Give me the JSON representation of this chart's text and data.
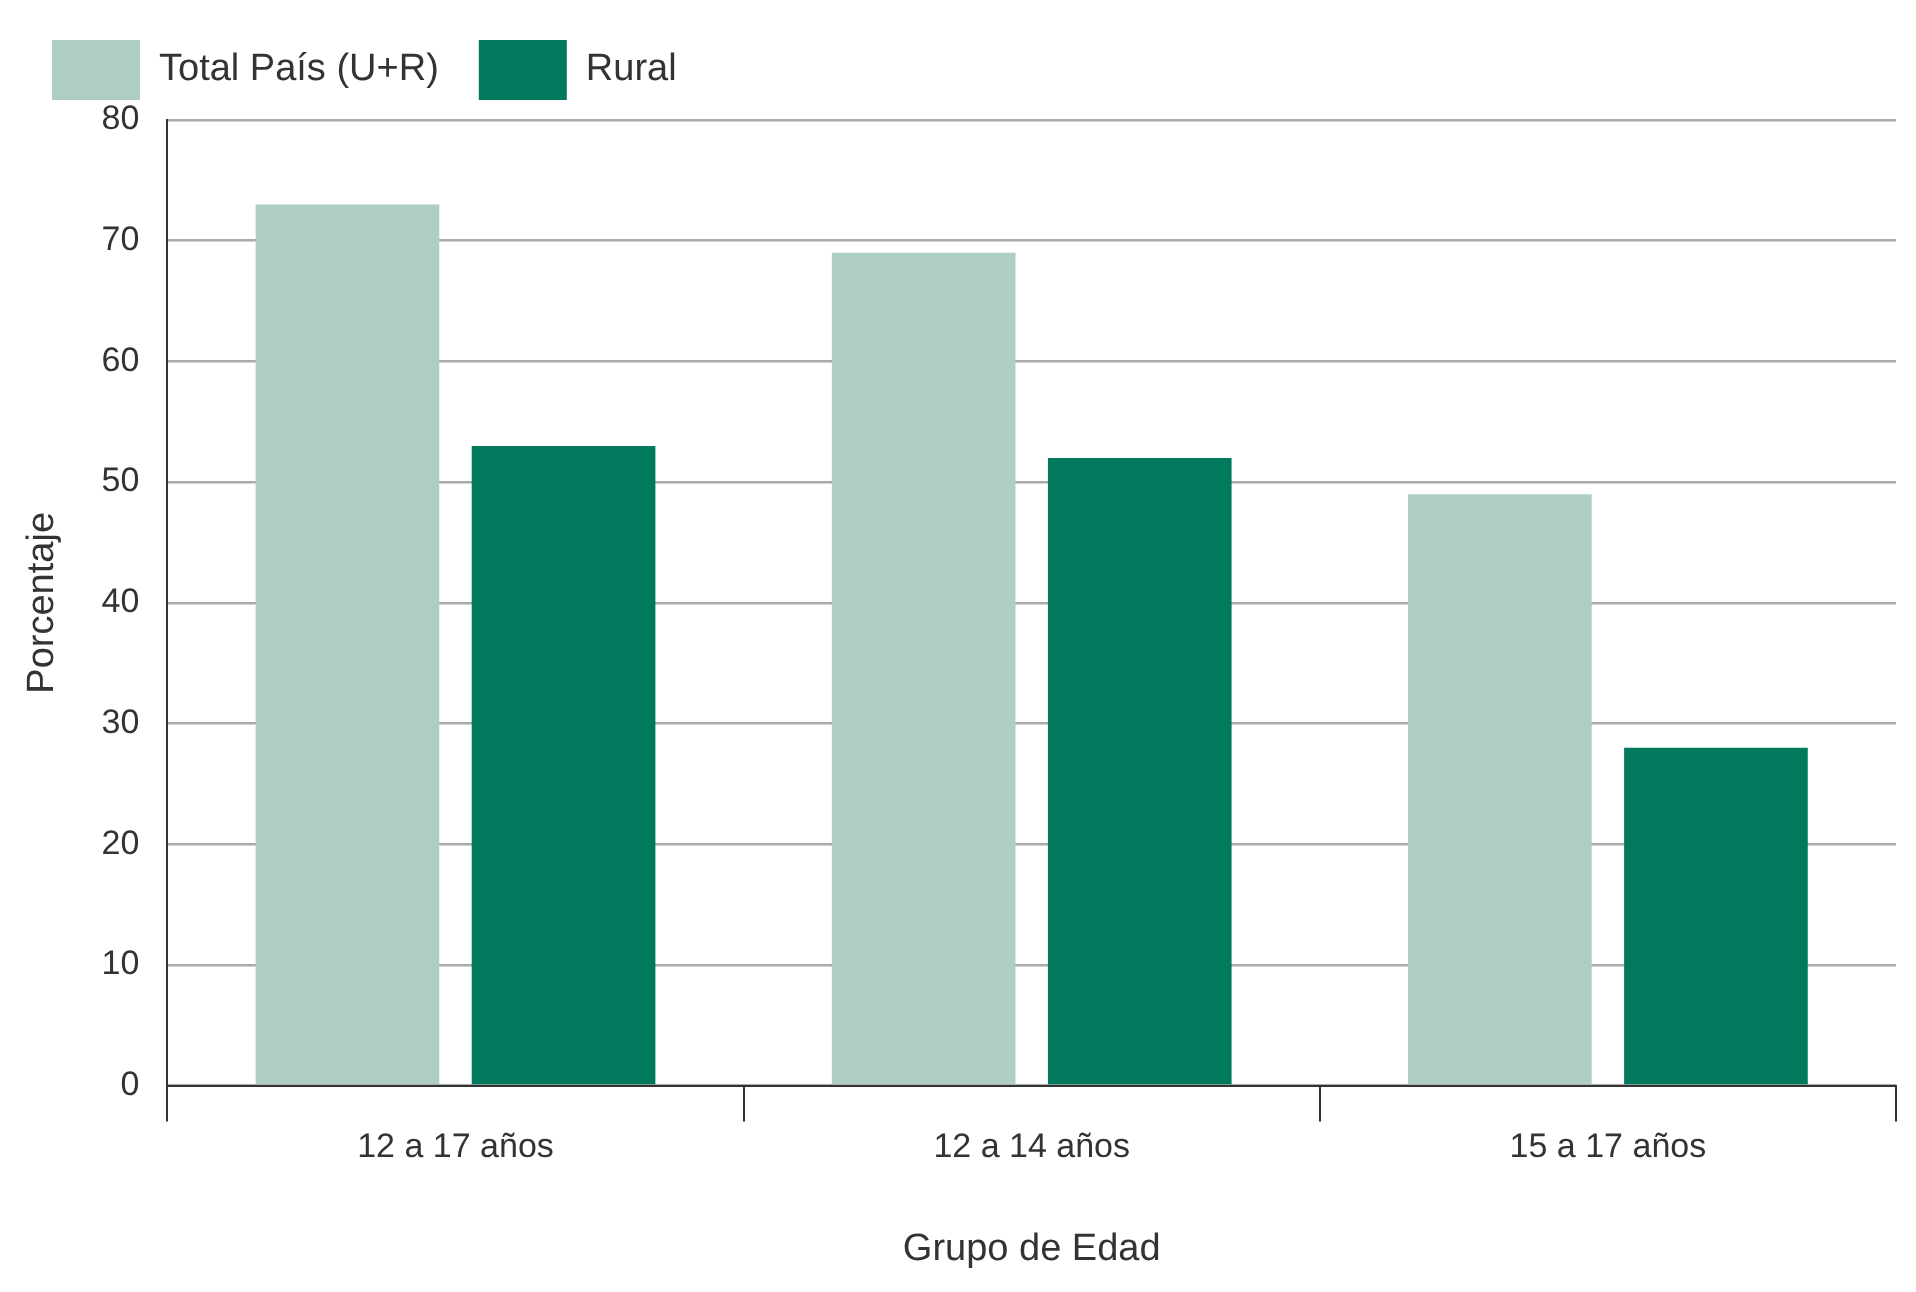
{
  "chart_data": {
    "type": "bar",
    "xlabel": "Grupo de Edad",
    "ylabel": "Porcentaje",
    "categories": [
      "12 a 17 años",
      "12 a 14 años",
      "15 a 17 años"
    ],
    "series": [
      {
        "name": "Total País (U+R)",
        "color": "#adcdc5",
        "values": [
          73,
          69,
          49
        ]
      },
      {
        "name": "Rural",
        "color": "#00795c",
        "values": [
          53,
          52,
          28
        ]
      }
    ],
    "ylim": [
      0,
      80
    ],
    "yticks": [
      0,
      10,
      20,
      30,
      40,
      50,
      60,
      70,
      80
    ],
    "grid": "y",
    "legend": "top left"
  }
}
